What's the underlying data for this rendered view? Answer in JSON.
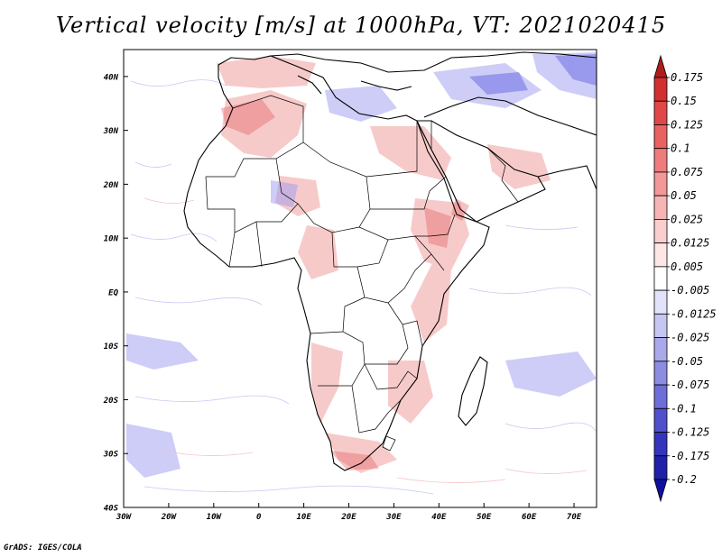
{
  "title": "Vertical velocity [m/s] at 1000hPa, VT: 2021020415",
  "footer": "GrADS: IGES/COLA",
  "map": {
    "lat_labels": [
      "40N",
      "30N",
      "20N",
      "10N",
      "EQ",
      "10S",
      "20S",
      "30S",
      "40S"
    ],
    "lon_labels": [
      "30W",
      "20W",
      "10W",
      "0",
      "10E",
      "20E",
      "30E",
      "40E",
      "50E",
      "60E",
      "70E"
    ],
    "lat_range": [
      -40,
      45
    ],
    "lon_range": [
      -30,
      75
    ]
  },
  "colorbar": {
    "labels": [
      "0.175",
      "0.15",
      "0.125",
      "0.1",
      "0.075",
      "0.05",
      "0.025",
      "0.0125",
      "0.005",
      "-0.005",
      "-0.0125",
      "-0.025",
      "-0.05",
      "-0.075",
      "-0.1",
      "-0.125",
      "-0.175",
      "-0.2"
    ],
    "colors": [
      "#b01c1c",
      "#d03030",
      "#e04848",
      "#e86262",
      "#ee7c7c",
      "#f29898",
      "#f6b4b4",
      "#f9cece",
      "#fce6e6",
      "#ffffff",
      "#e2e2fa",
      "#c6c6f2",
      "#a8a8ea",
      "#8c8ce2",
      "#6e6ed8",
      "#5050cc",
      "#3434bc",
      "#2020a8",
      "#1010a0"
    ]
  }
}
